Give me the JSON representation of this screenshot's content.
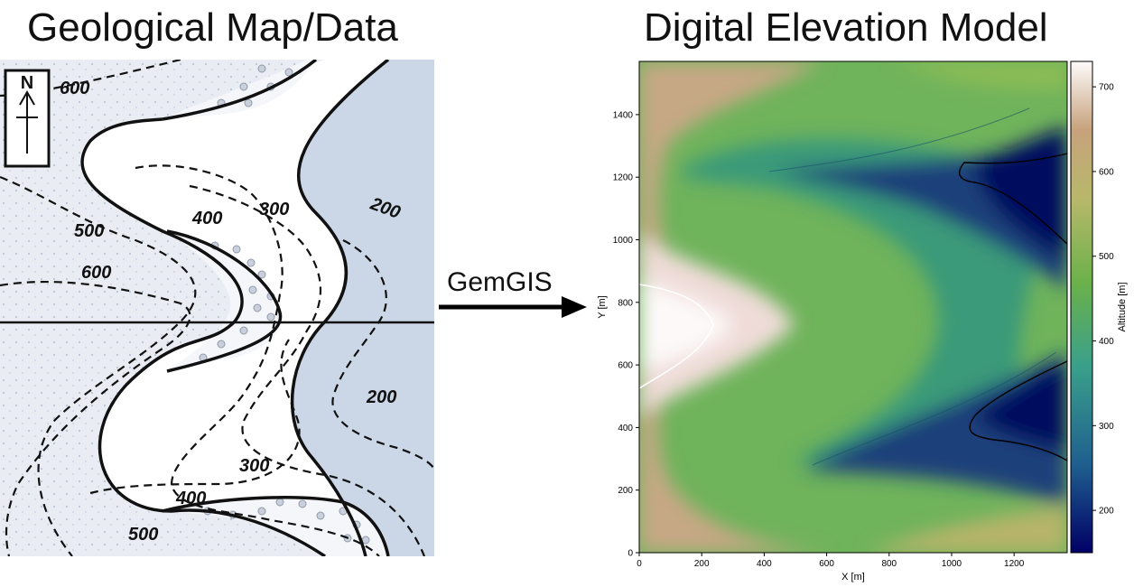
{
  "titles": {
    "left": "Geological Map/Data",
    "right": "Digital Elevation Model"
  },
  "arrow": {
    "label": "GemGIS"
  },
  "geomap": {
    "north_label": "N",
    "contour_labels": [
      "600",
      "500",
      "600",
      "400",
      "300",
      "200",
      "200",
      "300",
      "400",
      "500"
    ]
  },
  "colors": {
    "valley_fill": "#cbd6e6",
    "map_background": "#e9edf3",
    "contour": "#111111"
  },
  "chart_data": {
    "type": "heatmap",
    "title": "",
    "xlabel": "X [m]",
    "ylabel": "Y [m]",
    "xlim": [
      0,
      1370
    ],
    "ylim": [
      0,
      1570
    ],
    "xticks": [
      "0",
      "200",
      "400",
      "600",
      "800",
      "1000",
      "1200"
    ],
    "yticks": [
      "0",
      "200",
      "400",
      "600",
      "800",
      "1000",
      "1200",
      "1400"
    ],
    "colorbar": {
      "label": "Altitude [m]",
      "range": [
        150,
        730
      ],
      "ticks": [
        "200",
        "300",
        "400",
        "500",
        "600",
        "700"
      ],
      "colormap": "gist_earth"
    },
    "contour_levels": [
      300,
      600
    ]
  }
}
